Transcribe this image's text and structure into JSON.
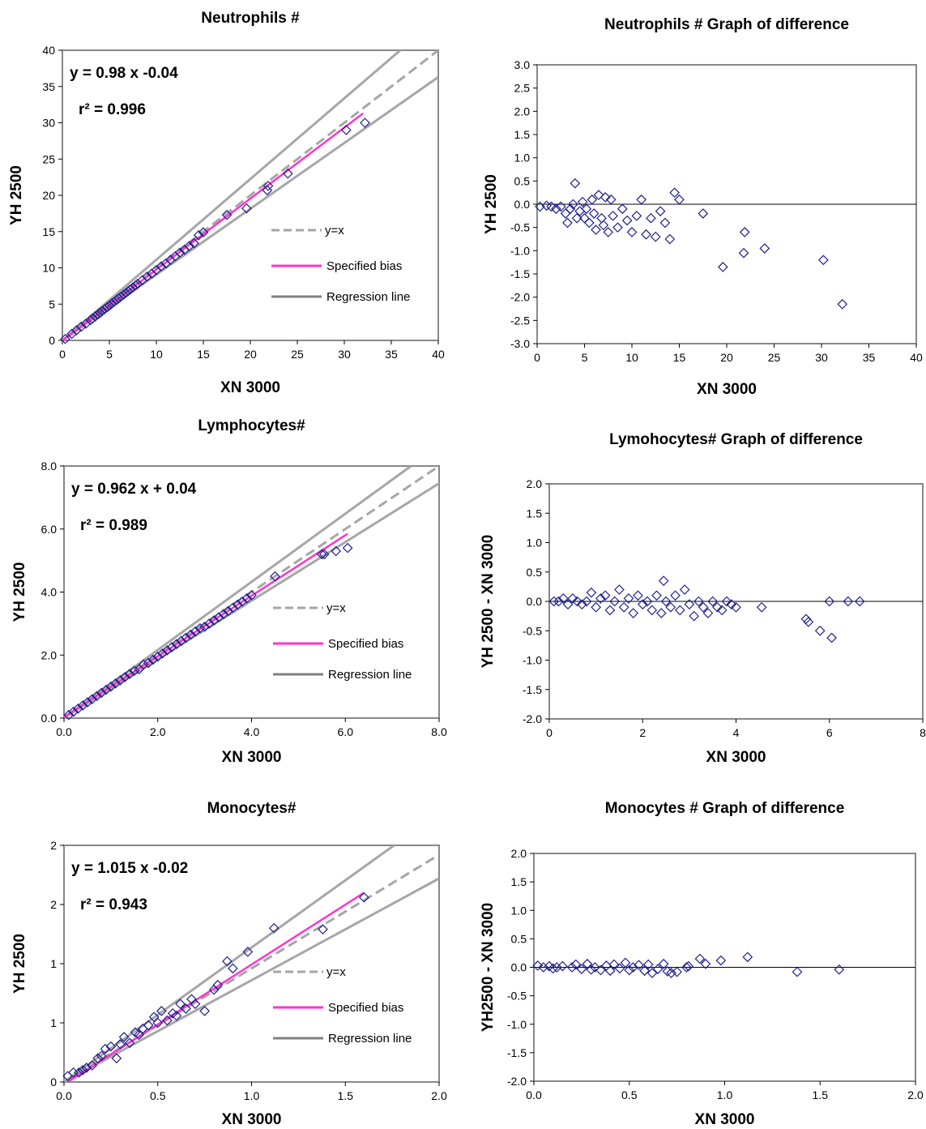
{
  "chart_data": [
    {
      "id": "neut-scatter",
      "type": "scatter",
      "title": "Neutrophils #",
      "xlabel": "XN 3000",
      "ylabel": "YH 2500",
      "xlim": [
        0,
        40
      ],
      "ylim": [
        0,
        40
      ],
      "xticks": [
        "0",
        "5",
        "10",
        "15",
        "20",
        "25",
        "30",
        "35",
        "40"
      ],
      "yticks": [
        "0",
        "5",
        "10",
        "15",
        "20",
        "25",
        "30",
        "35",
        "40"
      ],
      "equation": "y = 0.98 x  -0.04",
      "r2": "r² = 0.996",
      "legend": {
        "identity": "y=x",
        "bias": "Specified bias",
        "regression": "Regression line"
      },
      "lines": {
        "identity": [
          [
            0,
            0
          ],
          [
            40,
            40
          ]
        ],
        "bias": [
          [
            0,
            -0.04
          ],
          [
            32,
            31.3
          ]
        ],
        "upper": [
          [
            0,
            0
          ],
          [
            40,
            44.5
          ]
        ],
        "lower": [
          [
            0,
            0
          ],
          [
            40,
            36.3
          ]
        ]
      },
      "points": [
        [
          0.3,
          0.2
        ],
        [
          1.0,
          0.9
        ],
        [
          1.5,
          1.4
        ],
        [
          2.0,
          1.9
        ],
        [
          2.5,
          2.3
        ],
        [
          3.0,
          2.8
        ],
        [
          3.2,
          3.0
        ],
        [
          3.5,
          3.3
        ],
        [
          3.8,
          3.6
        ],
        [
          4.0,
          3.8
        ],
        [
          4.2,
          4.0
        ],
        [
          4.5,
          4.3
        ],
        [
          4.8,
          4.6
        ],
        [
          5.0,
          4.8
        ],
        [
          5.2,
          5.0
        ],
        [
          5.5,
          5.3
        ],
        [
          5.8,
          5.6
        ],
        [
          6.0,
          5.8
        ],
        [
          6.2,
          6.0
        ],
        [
          6.5,
          6.3
        ],
        [
          6.8,
          6.6
        ],
        [
          7.0,
          6.8
        ],
        [
          7.2,
          7.0
        ],
        [
          7.5,
          7.3
        ],
        [
          7.8,
          7.6
        ],
        [
          8.0,
          7.8
        ],
        [
          8.5,
          8.3
        ],
        [
          9.0,
          8.8
        ],
        [
          9.5,
          9.2
        ],
        [
          10.0,
          9.7
        ],
        [
          10.5,
          10.2
        ],
        [
          11.0,
          10.6
        ],
        [
          11.5,
          11.1
        ],
        [
          12.0,
          11.6
        ],
        [
          12.5,
          12.1
        ],
        [
          13.0,
          12.5
        ],
        [
          13.5,
          13.0
        ],
        [
          14.0,
          13.4
        ],
        [
          14.5,
          14.5
        ],
        [
          15.0,
          14.9
        ],
        [
          17.5,
          17.3
        ],
        [
          19.6,
          18.2
        ],
        [
          21.8,
          20.7
        ],
        [
          21.9,
          21.3
        ],
        [
          24.0,
          23.0
        ],
        [
          30.2,
          29.0
        ],
        [
          32.2,
          30.0
        ]
      ]
    },
    {
      "id": "neut-diff",
      "type": "scatter",
      "title": "Neutrophils # Graph of difference",
      "xlabel": "XN 3000",
      "ylabel": "YH 2500",
      "xlim": [
        0,
        40
      ],
      "ylim": [
        -3,
        3
      ],
      "xticks": [
        "0",
        "5",
        "10",
        "15",
        "20",
        "25",
        "30",
        "35",
        "40"
      ],
      "yticks": [
        "-3.0",
        "-2.5",
        "-2.0",
        "-1.5",
        "-1.0",
        "-0.5",
        "0.0",
        "0.5",
        "1.0",
        "1.5",
        "2.0",
        "2.5",
        "3.0"
      ],
      "points": [
        [
          0.3,
          -0.05
        ],
        [
          1.0,
          -0.03
        ],
        [
          1.5,
          -0.05
        ],
        [
          2.0,
          -0.1
        ],
        [
          2.5,
          -0.05
        ],
        [
          3.0,
          -0.2
        ],
        [
          3.2,
          -0.4
        ],
        [
          3.5,
          -0.1
        ],
        [
          3.8,
          0.0
        ],
        [
          4.0,
          0.45
        ],
        [
          4.2,
          -0.3
        ],
        [
          4.5,
          -0.15
        ],
        [
          4.8,
          0.05
        ],
        [
          5.0,
          -0.3
        ],
        [
          5.2,
          -0.1
        ],
        [
          5.5,
          -0.4
        ],
        [
          5.8,
          0.1
        ],
        [
          6.0,
          -0.2
        ],
        [
          6.2,
          -0.55
        ],
        [
          6.5,
          0.2
        ],
        [
          6.8,
          -0.3
        ],
        [
          7.0,
          -0.45
        ],
        [
          7.2,
          0.15
        ],
        [
          7.5,
          -0.6
        ],
        [
          7.8,
          0.1
        ],
        [
          8.0,
          -0.25
        ],
        [
          8.5,
          -0.5
        ],
        [
          9.0,
          -0.1
        ],
        [
          9.5,
          -0.35
        ],
        [
          10.0,
          -0.6
        ],
        [
          10.5,
          -0.25
        ],
        [
          11.0,
          0.1
        ],
        [
          11.5,
          -0.65
        ],
        [
          12.0,
          -0.3
        ],
        [
          12.5,
          -0.7
        ],
        [
          13.0,
          -0.15
        ],
        [
          13.5,
          -0.4
        ],
        [
          14.0,
          -0.75
        ],
        [
          14.5,
          0.25
        ],
        [
          15.0,
          0.1
        ],
        [
          17.5,
          -0.2
        ],
        [
          19.6,
          -1.35
        ],
        [
          21.8,
          -1.05
        ],
        [
          21.9,
          -0.6
        ],
        [
          24.0,
          -0.95
        ],
        [
          30.2,
          -1.2
        ],
        [
          32.2,
          -2.15
        ]
      ]
    },
    {
      "id": "lymph-scatter",
      "type": "scatter",
      "title": "Lymphocytes#",
      "xlabel": "XN 3000",
      "ylabel": "YH 2500",
      "xlim": [
        0,
        8
      ],
      "ylim": [
        0,
        8
      ],
      "xticks": [
        "0.0",
        "2.0",
        "4.0",
        "6.0",
        "8.0"
      ],
      "yticks": [
        "0.0",
        "2.0",
        "4.0",
        "6.0",
        "8.0"
      ],
      "equation": "y = 0.962 x + 0.04",
      "r2": "r² = 0.989",
      "legend": {
        "identity": "y=x",
        "bias": "Specified bias",
        "regression": "Regression line"
      },
      "lines": {
        "identity": [
          [
            0,
            0
          ],
          [
            8,
            8
          ]
        ],
        "bias": [
          [
            0,
            0.04
          ],
          [
            6.05,
            5.85
          ]
        ],
        "upper": [
          [
            0,
            0
          ],
          [
            7.4,
            8.0
          ]
        ],
        "lower": [
          [
            0,
            0
          ],
          [
            8,
            7.45
          ]
        ]
      },
      "points": [
        [
          0.1,
          0.1
        ],
        [
          0.2,
          0.2
        ],
        [
          0.3,
          0.3
        ],
        [
          0.4,
          0.4
        ],
        [
          0.5,
          0.5
        ],
        [
          0.6,
          0.6
        ],
        [
          0.7,
          0.7
        ],
        [
          0.8,
          0.8
        ],
        [
          0.9,
          0.9
        ],
        [
          1.0,
          1.0
        ],
        [
          1.1,
          1.1
        ],
        [
          1.2,
          1.2
        ],
        [
          1.3,
          1.3
        ],
        [
          1.4,
          1.4
        ],
        [
          1.5,
          1.5
        ],
        [
          1.6,
          1.55
        ],
        [
          1.7,
          1.7
        ],
        [
          1.8,
          1.75
        ],
        [
          1.9,
          1.85
        ],
        [
          2.0,
          1.95
        ],
        [
          2.1,
          2.05
        ],
        [
          2.2,
          2.15
        ],
        [
          2.3,
          2.25
        ],
        [
          2.4,
          2.35
        ],
        [
          2.5,
          2.45
        ],
        [
          2.6,
          2.55
        ],
        [
          2.7,
          2.65
        ],
        [
          2.8,
          2.75
        ],
        [
          2.9,
          2.85
        ],
        [
          3.0,
          2.9
        ],
        [
          3.1,
          3.0
        ],
        [
          3.2,
          3.1
        ],
        [
          3.3,
          3.2
        ],
        [
          3.4,
          3.3
        ],
        [
          3.5,
          3.4
        ],
        [
          3.6,
          3.5
        ],
        [
          3.7,
          3.6
        ],
        [
          3.8,
          3.7
        ],
        [
          3.9,
          3.8
        ],
        [
          4.0,
          3.9
        ],
        [
          4.5,
          4.5
        ],
        [
          5.5,
          5.2
        ],
        [
          5.55,
          5.2
        ],
        [
          5.8,
          5.3
        ],
        [
          6.05,
          5.4
        ]
      ]
    },
    {
      "id": "lymph-diff",
      "type": "scatter",
      "title": "Lymohocytes# Graph of difference",
      "xlabel": "XN 3000",
      "ylabel": "YH 2500 - XN 3000",
      "xlim": [
        0,
        8
      ],
      "ylim": [
        -2,
        2
      ],
      "xticks": [
        "0",
        "2",
        "4",
        "6",
        "8"
      ],
      "yticks": [
        "-2.0",
        "-1.5",
        "-1.0",
        "-0.5",
        "0.0",
        "0.5",
        "1.0",
        "1.5",
        "2.0"
      ],
      "points": [
        [
          0.1,
          0.0
        ],
        [
          0.2,
          0.0
        ],
        [
          0.3,
          0.05
        ],
        [
          0.4,
          -0.05
        ],
        [
          0.5,
          0.05
        ],
        [
          0.6,
          0.0
        ],
        [
          0.7,
          -0.05
        ],
        [
          0.8,
          0.0
        ],
        [
          0.9,
          0.15
        ],
        [
          1.0,
          -0.1
        ],
        [
          1.1,
          0.05
        ],
        [
          1.2,
          0.1
        ],
        [
          1.3,
          -0.15
        ],
        [
          1.4,
          0.0
        ],
        [
          1.5,
          0.2
        ],
        [
          1.6,
          -0.1
        ],
        [
          1.7,
          0.05
        ],
        [
          1.8,
          -0.2
        ],
        [
          1.9,
          0.1
        ],
        [
          2.0,
          -0.05
        ],
        [
          2.1,
          0.0
        ],
        [
          2.2,
          -0.15
        ],
        [
          2.3,
          0.1
        ],
        [
          2.4,
          -0.2
        ],
        [
          2.45,
          0.35
        ],
        [
          2.5,
          0.0
        ],
        [
          2.6,
          -0.1
        ],
        [
          2.7,
          0.1
        ],
        [
          2.8,
          -0.15
        ],
        [
          2.9,
          0.2
        ],
        [
          3.0,
          -0.05
        ],
        [
          3.1,
          -0.25
        ],
        [
          3.2,
          0.0
        ],
        [
          3.3,
          -0.1
        ],
        [
          3.4,
          -0.2
        ],
        [
          3.5,
          0.0
        ],
        [
          3.6,
          -0.1
        ],
        [
          3.7,
          -0.15
        ],
        [
          3.8,
          0.0
        ],
        [
          3.9,
          -0.05
        ],
        [
          4.0,
          -0.1
        ],
        [
          4.55,
          -0.1
        ],
        [
          5.5,
          -0.3
        ],
        [
          5.55,
          -0.35
        ],
        [
          5.8,
          -0.5
        ],
        [
          6.0,
          0.0
        ],
        [
          6.05,
          -0.62
        ],
        [
          6.4,
          0.0
        ],
        [
          6.65,
          0.0
        ]
      ]
    },
    {
      "id": "mono-scatter",
      "type": "scatter",
      "title": "Monocytes#",
      "xlabel": "XN 3000",
      "ylabel": "YH 2500",
      "xlim": [
        0,
        2
      ],
      "ylim": [
        0,
        2
      ],
      "xticks": [
        "0.0",
        "0.5",
        "1.0",
        "1.5",
        "2.0"
      ],
      "yticks": [
        "0",
        "1",
        "1",
        "2",
        "2"
      ],
      "equation": "y = 1.015 x  -0.02",
      "r2": "r² = 0.943",
      "legend": {
        "identity": "y=x",
        "bias": "Specified bias",
        "regression": "Regression line"
      },
      "lines": {
        "identity": [
          [
            0,
            0
          ],
          [
            2,
            1.92
          ]
        ],
        "bias": [
          [
            0,
            -0.02
          ],
          [
            1.6,
            1.6
          ]
        ],
        "upper": [
          [
            0,
            0
          ],
          [
            1.76,
            2.0
          ]
        ],
        "lower": [
          [
            0,
            0
          ],
          [
            2,
            1.72
          ]
        ]
      },
      "points": [
        [
          0.02,
          0.05
        ],
        [
          0.05,
          0.08
        ],
        [
          0.08,
          0.08
        ],
        [
          0.1,
          0.1
        ],
        [
          0.12,
          0.12
        ],
        [
          0.15,
          0.14
        ],
        [
          0.18,
          0.2
        ],
        [
          0.2,
          0.22
        ],
        [
          0.22,
          0.28
        ],
        [
          0.25,
          0.3
        ],
        [
          0.28,
          0.2
        ],
        [
          0.3,
          0.32
        ],
        [
          0.32,
          0.38
        ],
        [
          0.35,
          0.33
        ],
        [
          0.38,
          0.42
        ],
        [
          0.4,
          0.4
        ],
        [
          0.42,
          0.45
        ],
        [
          0.45,
          0.48
        ],
        [
          0.48,
          0.55
        ],
        [
          0.5,
          0.5
        ],
        [
          0.52,
          0.6
        ],
        [
          0.55,
          0.52
        ],
        [
          0.58,
          0.58
        ],
        [
          0.6,
          0.56
        ],
        [
          0.62,
          0.66
        ],
        [
          0.65,
          0.62
        ],
        [
          0.68,
          0.7
        ],
        [
          0.7,
          0.66
        ],
        [
          0.75,
          0.6
        ],
        [
          0.8,
          0.78
        ],
        [
          0.82,
          0.82
        ],
        [
          0.87,
          1.02
        ],
        [
          0.9,
          0.96
        ],
        [
          0.98,
          1.1
        ],
        [
          1.12,
          1.3
        ],
        [
          1.38,
          1.29
        ],
        [
          1.6,
          1.56
        ]
      ]
    },
    {
      "id": "mono-diff",
      "type": "scatter",
      "title": "Monocytes # Graph of difference",
      "xlabel": "XN 3000",
      "ylabel": "YH2500 - XN 3000",
      "xlim": [
        0,
        2
      ],
      "ylim": [
        -2,
        2
      ],
      "xticks": [
        "0.0",
        "0.5",
        "1.0",
        "1.5",
        "2.0"
      ],
      "yticks": [
        "-2.0",
        "-1.5",
        "-1.0",
        "-0.5",
        "0.0",
        "0.5",
        "1.0",
        "1.5",
        "2.0"
      ],
      "points": [
        [
          0.02,
          0.03
        ],
        [
          0.05,
          0.0
        ],
        [
          0.08,
          0.02
        ],
        [
          0.1,
          -0.02
        ],
        [
          0.12,
          0.0
        ],
        [
          0.15,
          0.02
        ],
        [
          0.2,
          0.0
        ],
        [
          0.22,
          0.05
        ],
        [
          0.25,
          -0.03
        ],
        [
          0.28,
          0.06
        ],
        [
          0.3,
          -0.04
        ],
        [
          0.32,
          0.0
        ],
        [
          0.35,
          -0.05
        ],
        [
          0.38,
          0.03
        ],
        [
          0.4,
          -0.06
        ],
        [
          0.42,
          0.05
        ],
        [
          0.45,
          -0.02
        ],
        [
          0.48,
          0.08
        ],
        [
          0.5,
          -0.05
        ],
        [
          0.52,
          0.0
        ],
        [
          0.55,
          0.04
        ],
        [
          0.58,
          -0.06
        ],
        [
          0.6,
          0.05
        ],
        [
          0.62,
          -0.1
        ],
        [
          0.65,
          -0.03
        ],
        [
          0.68,
          0.06
        ],
        [
          0.7,
          -0.07
        ],
        [
          0.72,
          -0.1
        ],
        [
          0.75,
          -0.08
        ],
        [
          0.8,
          0.0
        ],
        [
          0.81,
          0.02
        ],
        [
          0.87,
          0.15
        ],
        [
          0.9,
          0.06
        ],
        [
          0.98,
          0.12
        ],
        [
          1.12,
          0.18
        ],
        [
          1.38,
          -0.08
        ],
        [
          1.6,
          -0.04
        ]
      ]
    }
  ]
}
